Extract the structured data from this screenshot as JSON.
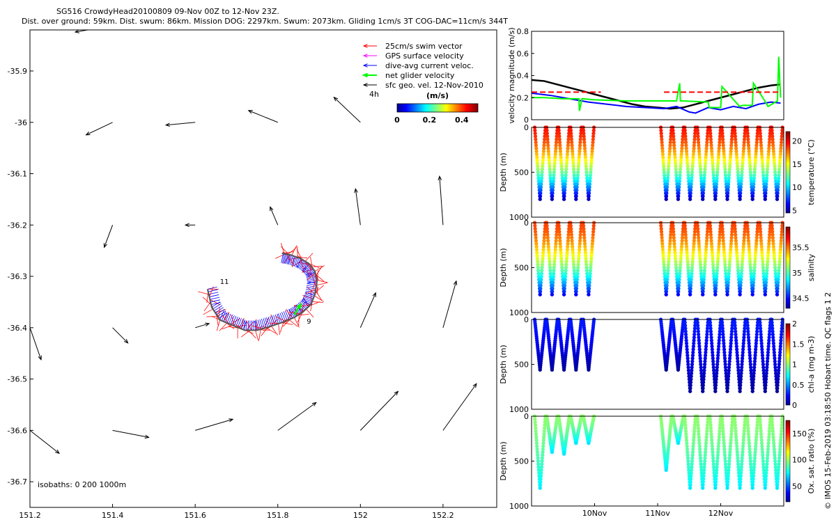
{
  "header": {
    "title_line1": "SG516 CrowdyHead20100809 09-Nov 00Z to 12-Nov 23Z.",
    "title_line2": "Dist. over ground: 59km. Dist. swum: 86km. Mission DOG: 2297km. Swum: 2073km. Gliding 1cm/s 3T COG-DAC=11cm/s 344T"
  },
  "footer": {
    "credit": "© IMOS 15-Feb-2019 03:18:50 Hobart time. QC flags 1  2"
  },
  "chart_data": [
    {
      "id": "map",
      "type": "scatter",
      "xlim": [
        151.2,
        152.33
      ],
      "ylim": [
        -36.75,
        -35.82
      ],
      "x_ticks": [
        "151.2",
        "151.4",
        "151.6",
        "151.8",
        "152",
        "152.2"
      ],
      "x_tick_values": [
        151.2,
        151.4,
        151.6,
        151.8,
        152.0,
        152.2
      ],
      "y_ticks": [
        "-35.9",
        "-36",
        "-36.1",
        "-36.2",
        "-36.3",
        "-36.4",
        "-36.5",
        "-36.6",
        "-36.7"
      ],
      "y_tick_values": [
        -35.9,
        -36.0,
        -36.1,
        -36.2,
        -36.3,
        -36.4,
        -36.5,
        -36.6,
        -36.7
      ],
      "legend": [
        {
          "label": "25cm/s swim vector",
          "color": "#ff0000"
        },
        {
          "label": "GPS surface velocity",
          "color": "#ff00ff"
        },
        {
          "label": "dive-avg current veloc.",
          "color": "#0000ff"
        },
        {
          "label": "net glider velocity",
          "color": "#00ff00"
        },
        {
          "label": "sfc geo. vel. 12-Nov-2010",
          "color": "#000000"
        }
      ],
      "legend_note": "4h",
      "colorbar": {
        "label": "(m/s)",
        "ticks": [
          "0",
          "0.2",
          "0.4"
        ],
        "tick_values": [
          0,
          0.2,
          0.4
        ],
        "range": [
          0,
          0.5
        ]
      },
      "isobaths_label": "isobaths: 0   200  1000m",
      "track_labels": [
        {
          "text": "11",
          "lon": 151.66,
          "lat": -36.315
        },
        {
          "text": "9",
          "lon": 151.87,
          "lat": -36.392
        }
      ],
      "track": {
        "lon": [
          151.63,
          151.64,
          151.66,
          151.69,
          151.72,
          151.75,
          151.78,
          151.81,
          151.84,
          151.86,
          151.88,
          151.89,
          151.895,
          151.89,
          151.875,
          151.855,
          151.83,
          151.81
        ],
        "lat": [
          -36.325,
          -36.36,
          -36.385,
          -36.395,
          -36.405,
          -36.405,
          -36.398,
          -36.39,
          -36.38,
          -36.37,
          -36.355,
          -36.335,
          -36.31,
          -36.29,
          -36.275,
          -36.265,
          -36.258,
          -36.255
        ]
      },
      "geo_vectors": [
        {
          "lon": 151.34,
          "lat": -35.82,
          "u": -0.18,
          "v": -0.03
        },
        {
          "lon": 151.4,
          "lat": -36.0,
          "u": -0.38,
          "v": -0.18
        },
        {
          "lon": 151.6,
          "lat": -36.0,
          "u": -0.42,
          "v": -0.04
        },
        {
          "lon": 151.8,
          "lat": -36.0,
          "u": -0.42,
          "v": 0.17
        },
        {
          "lon": 152.0,
          "lat": -36.0,
          "u": -0.38,
          "v": 0.36
        },
        {
          "lon": 151.4,
          "lat": -36.2,
          "u": -0.12,
          "v": -0.32
        },
        {
          "lon": 151.6,
          "lat": -36.2,
          "u": -0.14,
          "v": 0.0
        },
        {
          "lon": 151.8,
          "lat": -36.2,
          "u": -0.11,
          "v": 0.26
        },
        {
          "lon": 152.0,
          "lat": -36.2,
          "u": -0.07,
          "v": 0.52
        },
        {
          "lon": 152.2,
          "lat": -36.2,
          "u": -0.05,
          "v": 0.7
        },
        {
          "lon": 151.2,
          "lat": -36.4,
          "u": 0.16,
          "v": -0.46
        },
        {
          "lon": 151.4,
          "lat": -36.4,
          "u": 0.22,
          "v": -0.22
        },
        {
          "lon": 151.6,
          "lat": -36.4,
          "u": 0.2,
          "v": 0.06
        },
        {
          "lon": 152.0,
          "lat": -36.4,
          "u": 0.22,
          "v": 0.5
        },
        {
          "lon": 152.2,
          "lat": -36.4,
          "u": 0.19,
          "v": 0.67
        },
        {
          "lon": 151.2,
          "lat": -36.6,
          "u": 0.42,
          "v": -0.33
        },
        {
          "lon": 151.4,
          "lat": -36.6,
          "u": 0.52,
          "v": -0.1
        },
        {
          "lon": 151.6,
          "lat": -36.6,
          "u": 0.54,
          "v": 0.16
        },
        {
          "lon": 151.8,
          "lat": -36.6,
          "u": 0.55,
          "v": 0.4
        },
        {
          "lon": 152.0,
          "lat": -36.6,
          "u": 0.54,
          "v": 0.56
        },
        {
          "lon": 152.2,
          "lat": -36.6,
          "u": 0.48,
          "v": 0.67
        }
      ]
    },
    {
      "id": "velocity",
      "type": "line",
      "ylabel": "velocity magnitude (m/s)",
      "ylim": [
        0,
        0.8
      ],
      "y_ticks": [
        "0",
        "0.2",
        "0.4",
        "0.6",
        "0.8"
      ],
      "y_tick_values": [
        0,
        0.2,
        0.4,
        0.6,
        0.8
      ],
      "xlim_days": [
        9.0,
        13.0
      ],
      "series": [
        {
          "color": "#000000",
          "x": [
            9.0,
            9.2,
            9.4,
            9.6,
            9.8,
            10.0,
            10.2,
            10.4,
            10.6,
            10.8,
            11.0,
            11.2,
            11.4,
            11.6,
            11.8,
            12.0,
            12.2,
            12.4,
            12.6,
            12.8,
            12.95
          ],
          "y": [
            0.36,
            0.35,
            0.32,
            0.29,
            0.26,
            0.23,
            0.2,
            0.17,
            0.14,
            0.12,
            0.11,
            0.1,
            0.11,
            0.14,
            0.17,
            0.2,
            0.23,
            0.26,
            0.29,
            0.31,
            0.32
          ]
        },
        {
          "color": "#0000ff",
          "x": [
            9.0,
            9.3,
            9.6,
            9.9,
            10.2,
            10.5,
            10.8,
            11.1,
            11.3,
            11.5,
            11.6,
            11.8,
            12.0,
            12.2,
            12.4,
            12.6,
            12.8,
            12.95
          ],
          "y": [
            0.24,
            0.22,
            0.19,
            0.16,
            0.14,
            0.12,
            0.11,
            0.1,
            0.12,
            0.07,
            0.06,
            0.11,
            0.09,
            0.12,
            0.1,
            0.14,
            0.16,
            0.15
          ]
        },
        {
          "color": "#00ff00",
          "x": [
            9.0,
            9.2,
            9.5,
            9.75,
            9.76,
            9.8,
            10.0,
            10.5,
            11.0,
            11.2,
            11.3,
            11.35,
            11.36,
            11.4,
            11.8,
            11.82,
            12.0,
            12.02,
            12.3,
            12.35,
            12.5,
            12.52,
            12.7,
            12.75,
            12.9,
            12.92,
            12.95
          ],
          "y": [
            0.2,
            0.2,
            0.19,
            0.19,
            0.08,
            0.19,
            0.18,
            0.17,
            0.17,
            0.17,
            0.17,
            0.33,
            0.17,
            0.17,
            0.16,
            0.11,
            0.11,
            0.3,
            0.12,
            0.13,
            0.13,
            0.33,
            0.17,
            0.12,
            0.17,
            0.57,
            0.2
          ]
        },
        {
          "color": "#ff0000",
          "dashed": true,
          "x": [
            9.0,
            10.1
          ],
          "y": [
            0.25,
            0.25
          ]
        },
        {
          "color": "#ff0000",
          "dashed": true,
          "x": [
            11.1,
            12.95
          ],
          "y": [
            0.25,
            0.25
          ]
        }
      ]
    },
    {
      "id": "temperature",
      "type": "scatter",
      "ylabel": "Depth (m)",
      "colorbar_label": "temperature (°C)",
      "colorbar_ticks": [
        "5",
        "10",
        "15",
        "20"
      ],
      "colorbar_tick_values": [
        5,
        10,
        15,
        20
      ],
      "crange": [
        4.5,
        22
      ],
      "ylim": [
        0,
        1000
      ],
      "y_ticks": [
        "0",
        "500",
        "1000"
      ],
      "y_tick_values": [
        0,
        500,
        1000
      ],
      "surface_value": 19.5,
      "bottom_value": 5.5,
      "dives": [
        {
          "t0": 9.05,
          "max_depth": 800
        },
        {
          "t0": 9.24,
          "max_depth": 800
        },
        {
          "t0": 9.43,
          "max_depth": 800
        },
        {
          "t0": 9.62,
          "max_depth": 800
        },
        {
          "t0": 9.82,
          "max_depth": 800
        },
        {
          "t0": 11.05,
          "max_depth": 800
        },
        {
          "t0": 11.24,
          "max_depth": 800
        },
        {
          "t0": 11.43,
          "max_depth": 800
        },
        {
          "t0": 11.63,
          "max_depth": 800
        },
        {
          "t0": 11.83,
          "max_depth": 800
        },
        {
          "t0": 12.02,
          "max_depth": 800
        },
        {
          "t0": 12.22,
          "max_depth": 800
        },
        {
          "t0": 12.42,
          "max_depth": 800
        },
        {
          "t0": 12.62,
          "max_depth": 800
        },
        {
          "t0": 12.81,
          "max_depth": 800
        }
      ]
    },
    {
      "id": "salinity",
      "type": "scatter",
      "ylabel": "Depth (m)",
      "colorbar_label": "salinity",
      "colorbar_ticks": [
        "34.5",
        "35",
        "35.5"
      ],
      "colorbar_tick_values": [
        34.5,
        35,
        35.5
      ],
      "crange": [
        34.3,
        35.9
      ],
      "ylim": [
        0,
        1000
      ],
      "y_ticks": [
        "0",
        "500",
        "1000"
      ],
      "y_tick_values": [
        0,
        500,
        1000
      ],
      "surface_value": 35.6,
      "bottom_value": 34.5,
      "dives": [
        {
          "t0": 9.05,
          "max_depth": 800
        },
        {
          "t0": 9.24,
          "max_depth": 800
        },
        {
          "t0": 9.43,
          "max_depth": 800
        },
        {
          "t0": 9.62,
          "max_depth": 800
        },
        {
          "t0": 9.82,
          "max_depth": 800
        },
        {
          "t0": 11.05,
          "max_depth": 800
        },
        {
          "t0": 11.24,
          "max_depth": 800
        },
        {
          "t0": 11.43,
          "max_depth": 800
        },
        {
          "t0": 11.63,
          "max_depth": 800
        },
        {
          "t0": 11.83,
          "max_depth": 800
        },
        {
          "t0": 12.02,
          "max_depth": 800
        },
        {
          "t0": 12.22,
          "max_depth": 800
        },
        {
          "t0": 12.42,
          "max_depth": 800
        },
        {
          "t0": 12.62,
          "max_depth": 800
        },
        {
          "t0": 12.81,
          "max_depth": 800
        }
      ]
    },
    {
      "id": "chla",
      "type": "scatter",
      "ylabel": "Depth (m)",
      "colorbar_label": "chl-a (mg m-3)",
      "colorbar_ticks": [
        "0",
        "0.5",
        "1",
        "1.5",
        "2"
      ],
      "colorbar_tick_values": [
        0,
        0.5,
        1,
        1.5,
        2
      ],
      "crange": [
        0,
        2
      ],
      "ylim": [
        0,
        1000
      ],
      "y_ticks": [
        "0",
        "500",
        "1000"
      ],
      "y_tick_values": [
        0,
        500,
        1000
      ],
      "surface_value": 0.3,
      "bottom_value": 0.05,
      "dives": [
        {
          "t0": 9.05,
          "max_depth": 560
        },
        {
          "t0": 9.24,
          "max_depth": 560
        },
        {
          "t0": 9.43,
          "max_depth": 560
        },
        {
          "t0": 9.62,
          "max_depth": 560
        },
        {
          "t0": 9.82,
          "max_depth": 560
        },
        {
          "t0": 11.05,
          "max_depth": 560
        },
        {
          "t0": 11.24,
          "max_depth": 560
        },
        {
          "t0": 11.43,
          "max_depth": 800
        },
        {
          "t0": 11.63,
          "max_depth": 800
        },
        {
          "t0": 11.83,
          "max_depth": 800
        },
        {
          "t0": 12.02,
          "max_depth": 800
        },
        {
          "t0": 12.22,
          "max_depth": 800
        },
        {
          "t0": 12.42,
          "max_depth": 800
        },
        {
          "t0": 12.62,
          "max_depth": 800
        },
        {
          "t0": 12.81,
          "max_depth": 800
        }
      ]
    },
    {
      "id": "oxygen",
      "type": "scatter",
      "ylabel": "Depth (m)",
      "colorbar_label": "Ox. sat. ratio (%)",
      "colorbar_ticks": [
        "50",
        "100",
        "150"
      ],
      "colorbar_tick_values": [
        50,
        100,
        150
      ],
      "crange": [
        20,
        175
      ],
      "ylim": [
        0,
        1000
      ],
      "y_ticks": [
        "0",
        "500",
        "1000"
      ],
      "y_tick_values": [
        0,
        500,
        1000
      ],
      "x_ticks": [
        "10Nov",
        "11Nov",
        "12Nov"
      ],
      "x_tick_values": [
        10,
        11,
        12
      ],
      "surface_value": 100,
      "bottom_value": 75,
      "dives": [
        {
          "t0": 9.05,
          "max_depth": 800
        },
        {
          "t0": 9.24,
          "max_depth": 400
        },
        {
          "t0": 9.43,
          "max_depth": 420
        },
        {
          "t0": 9.62,
          "max_depth": 300
        },
        {
          "t0": 9.82,
          "max_depth": 300
        },
        {
          "t0": 11.05,
          "max_depth": 600
        },
        {
          "t0": 11.24,
          "max_depth": 300
        },
        {
          "t0": 11.43,
          "max_depth": 800
        },
        {
          "t0": 11.63,
          "max_depth": 800
        },
        {
          "t0": 11.83,
          "max_depth": 800
        },
        {
          "t0": 12.02,
          "max_depth": 800
        },
        {
          "t0": 12.22,
          "max_depth": 800
        },
        {
          "t0": 12.42,
          "max_depth": 800
        },
        {
          "t0": 12.62,
          "max_depth": 800
        },
        {
          "t0": 12.81,
          "max_depth": 800
        }
      ]
    }
  ]
}
